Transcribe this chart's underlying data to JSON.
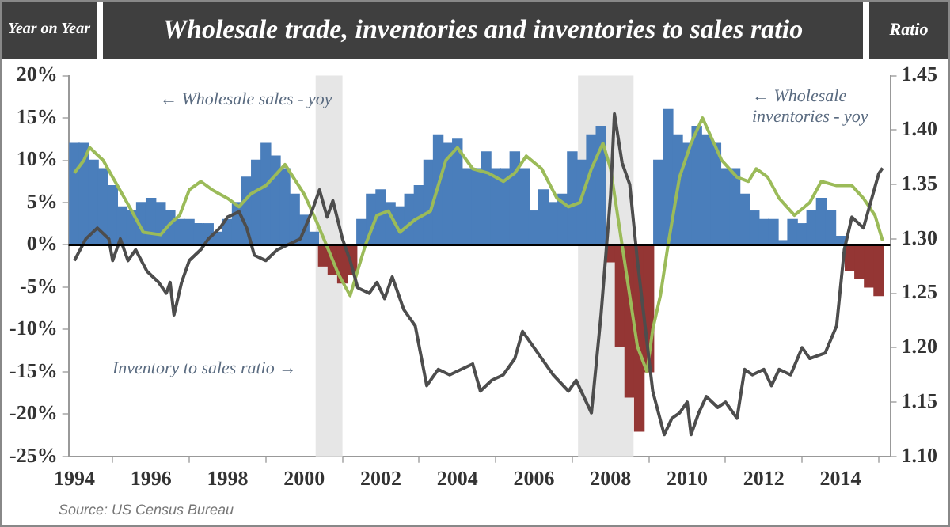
{
  "chart_data": {
    "type": "bar",
    "title": "Wholesale trade, inventories and inventories to sales ratio",
    "ylabel": "Year on Year",
    "y2label": "Ratio",
    "xlim": [
      1993.85,
      2015.3
    ],
    "xticks": [
      1994,
      1996,
      1998,
      2000,
      2002,
      2004,
      2006,
      2008,
      2010,
      2012,
      2014
    ],
    "ylim": [
      -25,
      20
    ],
    "yticks": [
      {
        "value": -25,
        "label": "-25%"
      },
      {
        "value": -20,
        "label": "-20%"
      },
      {
        "value": -15,
        "label": "-15%"
      },
      {
        "value": -10,
        "label": "-10%"
      },
      {
        "value": -5,
        "label": "-5%"
      },
      {
        "value": 0,
        "label": "0%"
      },
      {
        "value": 5,
        "label": "5%"
      },
      {
        "value": 10,
        "label": "10%"
      },
      {
        "value": 15,
        "label": "15%"
      },
      {
        "value": 20,
        "label": "20%"
      }
    ],
    "y2lim": [
      1.1,
      1.45
    ],
    "y2ticks": [
      {
        "value": 1.1,
        "label": "1.10"
      },
      {
        "value": 1.15,
        "label": "1.15"
      },
      {
        "value": 1.2,
        "label": "1.20"
      },
      {
        "value": 1.25,
        "label": "1.25"
      },
      {
        "value": 1.3,
        "label": "1.30"
      },
      {
        "value": 1.35,
        "label": "1.35"
      },
      {
        "value": 1.4,
        "label": "1.40"
      },
      {
        "value": 1.45,
        "label": "1.45"
      }
    ],
    "series": [
      {
        "x": [
          1994,
          1994.25,
          1994.5,
          1994.75,
          1995,
          1995.25,
          1995.5,
          1995.75,
          1996,
          1996.25,
          1996.5,
          1996.75,
          1997,
          1997.25,
          1997.5,
          1997.75,
          1998,
          1998.25,
          1998.5,
          1998.75,
          1999,
          1999.25,
          1999.5,
          1999.75,
          2000,
          2000.25,
          2000.5,
          2000.75,
          2001,
          2001.25,
          2001.5,
          2001.75,
          2002,
          2002.25,
          2002.5,
          2002.75,
          2003,
          2003.25,
          2003.5,
          2003.75,
          2004,
          2004.25,
          2004.5,
          2004.75,
          2005,
          2005.25,
          2005.5,
          2005.75,
          2006,
          2006.25,
          2006.5,
          2006.75,
          2007,
          2007.25,
          2007.5,
          2007.75,
          2008,
          2008.25,
          2008.5,
          2008.75,
          2009,
          2009.25,
          2009.5,
          2009.75,
          2010,
          2010.25,
          2010.5,
          2010.75,
          2011,
          2011.25,
          2011.5,
          2011.75,
          2012,
          2012.25,
          2012.5,
          2012.75,
          2013,
          2013.25,
          2013.5,
          2013.75,
          2014,
          2014.25,
          2014.5,
          2014.75,
          2015
        ],
        "values": [
          12,
          12,
          10,
          9,
          7,
          4.5,
          4,
          5,
          5.5,
          5,
          4,
          3,
          3,
          2.5,
          2.5,
          1.5,
          3,
          5,
          8,
          10,
          12,
          10.5,
          9,
          6,
          3.5,
          1.5,
          -2.5,
          -3.5,
          -4.5,
          -3.5,
          3,
          6,
          6.5,
          5,
          4.5,
          6,
          7,
          10,
          13,
          12,
          12.5,
          9,
          9,
          11,
          9,
          9,
          11,
          9,
          4,
          6.5,
          5,
          6,
          11,
          10,
          13,
          14,
          -2,
          -12,
          -18,
          -22,
          -15,
          10,
          16,
          13,
          12,
          14,
          13,
          12,
          9,
          9,
          6,
          4,
          3,
          3,
          0.5,
          3,
          2.5,
          4,
          5.5,
          4,
          1,
          -3,
          -4,
          -5,
          -6
        ],
        "colors": [
          "#4a7ebb",
          "#4a7ebb",
          "#4a7ebb",
          "#4a7ebb",
          "#4a7ebb",
          "#4a7ebb",
          "#4a7ebb",
          "#4a7ebb",
          "#4a7ebb",
          "#4a7ebb",
          "#4a7ebb",
          "#4a7ebb",
          "#4a7ebb",
          "#4a7ebb",
          "#4a7ebb",
          "#4a7ebb",
          "#4a7ebb",
          "#4a7ebb",
          "#4a7ebb",
          "#4a7ebb",
          "#4a7ebb",
          "#4a7ebb",
          "#4a7ebb",
          "#4a7ebb",
          "#4a7ebb",
          "#4a7ebb",
          "#943634",
          "#943634",
          "#943634",
          "#943634",
          "#4a7ebb",
          "#4a7ebb",
          "#4a7ebb",
          "#4a7ebb",
          "#4a7ebb",
          "#4a7ebb",
          "#4a7ebb",
          "#4a7ebb",
          "#4a7ebb",
          "#4a7ebb",
          "#4a7ebb",
          "#4a7ebb",
          "#4a7ebb",
          "#4a7ebb",
          "#4a7ebb",
          "#4a7ebb",
          "#4a7ebb",
          "#4a7ebb",
          "#4a7ebb",
          "#4a7ebb",
          "#4a7ebb",
          "#4a7ebb",
          "#4a7ebb",
          "#4a7ebb",
          "#4a7ebb",
          "#4a7ebb",
          "#943634",
          "#943634",
          "#943634",
          "#943634",
          "#943634",
          "#4a7ebb",
          "#4a7ebb",
          "#4a7ebb",
          "#4a7ebb",
          "#4a7ebb",
          "#4a7ebb",
          "#4a7ebb",
          "#4a7ebb",
          "#4a7ebb",
          "#4a7ebb",
          "#4a7ebb",
          "#4a7ebb",
          "#4a7ebb",
          "#4a7ebb",
          "#4a7ebb",
          "#4a7ebb",
          "#4a7ebb",
          "#4a7ebb",
          "#4a7ebb",
          "#4a7ebb",
          "#943634",
          "#943634",
          "#943634",
          "#943634"
        ]
      },
      {
        "type": "line",
        "color": "#9bbb59",
        "x": [
          1994,
          1994.25,
          1994.4,
          1994.75,
          1995,
          1995.5,
          1995.8,
          1996.25,
          1996.5,
          1996.75,
          1997,
          1997.3,
          1997.6,
          1998,
          1998.3,
          1998.6,
          1999,
          1999.5,
          2000,
          2000.3,
          2000.58,
          2000.9,
          2001.2,
          2001.4,
          2001.6,
          2001.9,
          2002.2,
          2002.5,
          2002.9,
          2003.3,
          2003.7,
          2004,
          2004.4,
          2004.8,
          2005.2,
          2005.5,
          2005.8,
          2006.2,
          2006.6,
          2006.9,
          2007.2,
          2007.5,
          2007.8,
          2008,
          2008.3,
          2008.4,
          2008.7,
          2008.95,
          2009.1,
          2009.3,
          2009.5,
          2009.8,
          2010.1,
          2010.4,
          2010.6,
          2010.9,
          2011.3,
          2011.6,
          2011.8,
          2012.1,
          2012.4,
          2012.8,
          2013.2,
          2013.5,
          2013.9,
          2014.3,
          2014.6,
          2014.9,
          2015.1
        ],
        "values": [
          8.5,
          10,
          11.5,
          10,
          8,
          4,
          1.5,
          1.2,
          2.5,
          3.5,
          6.5,
          7.5,
          6.5,
          5.5,
          4.5,
          6,
          7,
          9.5,
          6,
          3,
          0,
          -3.5,
          -6,
          -3,
          0,
          3.5,
          4,
          1.5,
          3,
          4,
          10,
          11.5,
          9,
          8.5,
          7.5,
          8.5,
          10.5,
          9,
          5.5,
          4.5,
          5,
          9,
          12,
          9,
          0,
          -3,
          -12,
          -15,
          -10,
          -6,
          0,
          8,
          12,
          15,
          13,
          10,
          8,
          7.5,
          9,
          8,
          5.5,
          3.5,
          5,
          7.5,
          7,
          7,
          5.5,
          3.5,
          0.5
        ]
      },
      {
        "type": "line",
        "color": "#4d4d4d",
        "axis": "y2",
        "x": [
          1994,
          1994.3,
          1994.6,
          1994.9,
          1995,
          1995.2,
          1995.4,
          1995.6,
          1995.9,
          1996.2,
          1996.4,
          1996.5,
          1996.6,
          1996.8,
          1997,
          1997.3,
          1997.5,
          1997.8,
          1998,
          1998.3,
          1998.5,
          1998.7,
          1999,
          1999.3,
          1999.6,
          1999.9,
          2000.2,
          2000.4,
          2000.6,
          2000.75,
          2001,
          2001.2,
          2001.4,
          2001.7,
          2001.9,
          2002.1,
          2002.3,
          2002.6,
          2002.9,
          2003.2,
          2003.5,
          2003.8,
          2004.1,
          2004.4,
          2004.6,
          2004.9,
          2005.2,
          2005.5,
          2005.7,
          2006.1,
          2006.5,
          2006.9,
          2007.1,
          2007.5,
          2007.75,
          2008,
          2008.1,
          2008.3,
          2008.5,
          2008.7,
          2008.9,
          2009.1,
          2009.4,
          2009.6,
          2009.8,
          2010,
          2010.1,
          2010.3,
          2010.5,
          2010.8,
          2011,
          2011.3,
          2011.5,
          2011.7,
          2012,
          2012.2,
          2012.4,
          2012.7,
          2013,
          2013.2,
          2013.6,
          2013.9,
          2014.1,
          2014.3,
          2014.6,
          2014.8,
          2015,
          2015.1
        ],
        "values": [
          1.28,
          1.3,
          1.31,
          1.3,
          1.28,
          1.3,
          1.28,
          1.29,
          1.27,
          1.26,
          1.25,
          1.26,
          1.23,
          1.26,
          1.28,
          1.29,
          1.3,
          1.31,
          1.32,
          1.325,
          1.31,
          1.285,
          1.28,
          1.29,
          1.295,
          1.3,
          1.325,
          1.345,
          1.32,
          1.335,
          1.3,
          1.28,
          1.255,
          1.25,
          1.26,
          1.245,
          1.265,
          1.235,
          1.22,
          1.165,
          1.18,
          1.175,
          1.18,
          1.185,
          1.16,
          1.17,
          1.175,
          1.19,
          1.215,
          1.195,
          1.175,
          1.16,
          1.17,
          1.14,
          1.23,
          1.34,
          1.415,
          1.37,
          1.35,
          1.28,
          1.22,
          1.16,
          1.12,
          1.135,
          1.14,
          1.15,
          1.12,
          1.14,
          1.155,
          1.145,
          1.15,
          1.135,
          1.18,
          1.175,
          1.18,
          1.165,
          1.18,
          1.175,
          1.2,
          1.19,
          1.195,
          1.22,
          1.29,
          1.32,
          1.31,
          1.335,
          1.36,
          1.365
        ]
      }
    ],
    "bands": [
      {
        "axis": "x",
        "from": 2000.3,
        "to": 2001.0,
        "color": "#e6e6e6"
      },
      {
        "axis": "x",
        "from": 2007.15,
        "to": 2008.6,
        "color": "#e6e6e6"
      }
    ],
    "ref_lines": [
      {
        "axis": "y",
        "value": 0,
        "color": "#000000"
      }
    ],
    "annotations": [
      "← Wholesale sales - yoy",
      "← Wholesale inventories - yoy",
      "Inventory to sales ratio →",
      "Source: US Census Bureau"
    ]
  }
}
